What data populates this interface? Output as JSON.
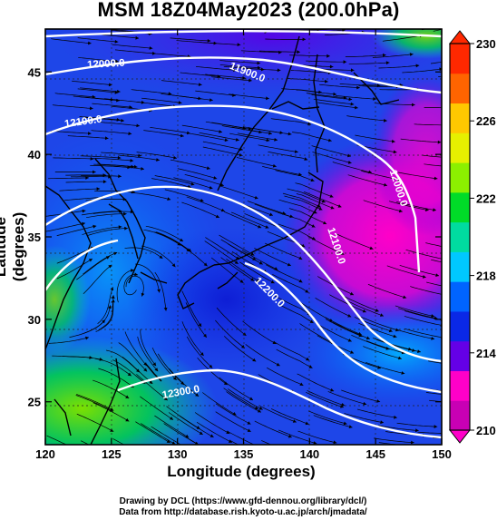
{
  "title": "MSM 18Z04May2023 (200.0hPa)",
  "xlabel": "Longitude (degrees)",
  "ylabel": "Latitude  (degrees)",
  "credits": [
    "Drawing by DCL (https://www.gfd-dennou.org/library/dcl/)",
    "Data from http://database.rish.kyoto-u.ac.jp/arch/jmadata/"
  ],
  "chart_data": {
    "type": "heatmap",
    "title": "MSM 18Z04May2023 (200.0hPa)",
    "xlabel": "Longitude (degrees)",
    "ylabel": "Latitude  (degrees)",
    "xlim": [
      120,
      150
    ],
    "ylim": [
      22.4,
      47.6
    ],
    "x_ticks": [
      120,
      125,
      130,
      135,
      140,
      145,
      150
    ],
    "y_ticks": [
      25,
      30,
      35,
      40,
      45
    ],
    "colorbar": {
      "range": [
        210,
        230
      ],
      "tick_labels": [
        210,
        214,
        218,
        222,
        226,
        230
      ],
      "colors": [
        "#c800b4",
        "#ff00c8",
        "#6400e6",
        "#0a28e6",
        "#0064ff",
        "#00c8ff",
        "#00dca0",
        "#00dc28",
        "#8cf000",
        "#e6f000",
        "#ffc800",
        "#ff6400",
        "#ff2800"
      ]
    },
    "contour_labels": [
      {
        "text": "12000.0",
        "lon": 124.6,
        "lat": 45.3
      },
      {
        "text": "11900.0",
        "lon": 135.2,
        "lat": 44.8
      },
      {
        "text": "12100.0",
        "lon": 122.9,
        "lat": 41.8
      },
      {
        "text": "12000.0",
        "lon": 146.5,
        "lat": 37.9
      },
      {
        "text": "12100.0",
        "lon": 141.8,
        "lat": 34.4
      },
      {
        "text": "12200.0",
        "lon": 136.8,
        "lat": 31.5
      },
      {
        "text": "12300.0",
        "lon": 130.3,
        "lat": 25.4
      }
    ]
  }
}
